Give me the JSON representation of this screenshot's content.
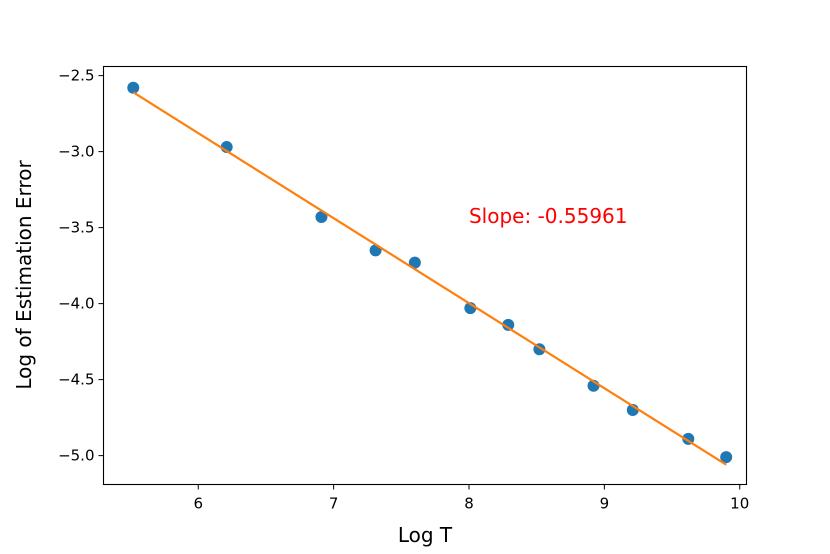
{
  "chart_data": {
    "type": "scatter",
    "title": "",
    "xlabel": "Log T",
    "ylabel": "Log of Estimation Error",
    "xlim": [
      5.3,
      10.05
    ],
    "ylim": [
      -5.19,
      -2.44
    ],
    "xticks": [
      6,
      7,
      8,
      9,
      10
    ],
    "xtick_labels": [
      "6",
      "7",
      "8",
      "9",
      "10"
    ],
    "yticks": [
      -2.5,
      -3.0,
      -3.5,
      -4.0,
      -4.5,
      -5.0
    ],
    "ytick_labels": [
      "−2.5",
      "−3.0",
      "−3.5",
      "−4.0",
      "−4.5",
      "−5.0"
    ],
    "grid": false,
    "series": [
      {
        "kind": "scatter",
        "color": "#1f77b4",
        "x": [
          5.52,
          6.21,
          6.91,
          7.31,
          7.6,
          8.01,
          8.29,
          8.52,
          8.92,
          9.21,
          9.62,
          9.9
        ],
        "y": [
          -2.58,
          -2.97,
          -3.43,
          -3.65,
          -3.73,
          -4.03,
          -4.14,
          -4.3,
          -4.54,
          -4.7,
          -4.89,
          -5.01
        ]
      },
      {
        "kind": "line",
        "color": "#ff7f0e",
        "x": [
          5.52,
          9.9
        ],
        "y": [
          -2.61,
          -5.06
        ]
      }
    ],
    "annotations": [
      {
        "text": "Slope: -0.55961",
        "x": 8.0,
        "y": -3.47,
        "color": "#ff0000"
      }
    ]
  }
}
